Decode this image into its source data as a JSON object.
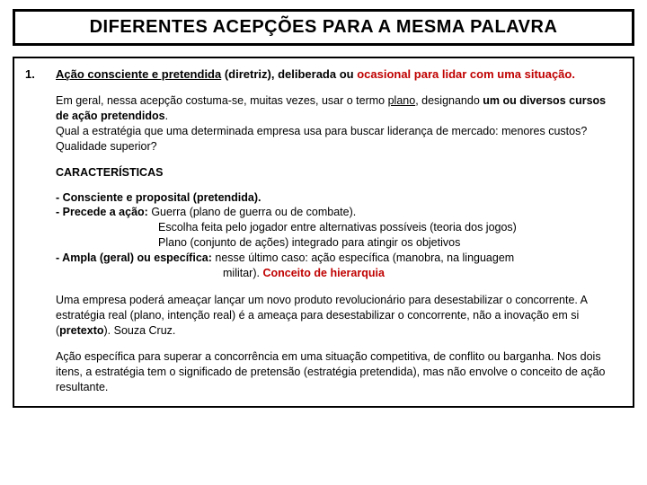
{
  "title": "DIFERENTES ACEPÇÕES PARA A MESMA PALAVRA",
  "item_number": "1.",
  "lead_pre": "Ação consciente e pretendida",
  "lead_post": " (diretriz), deliberada ou   ",
  "lead_red": "ocasional para lidar com uma situação.",
  "p1_a": "Em geral, nessa acepção costuma-se, muitas vezes, usar o termo ",
  "p1_plano": "plano",
  "p1_b": ", designando ",
  "p1_bold": "um ou diversos cursos de ação pretendidos",
  "p1_c": ".",
  "p2": "Qual a estratégia que uma determinada empresa usa para buscar liderança de mercado: menores custos? Qualidade superior?",
  "sect": "CARACTERÍSTICAS",
  "c1": "- Consciente e proposital (pretendida).",
  "c2_b": "- Precede a ação:",
  "c2_t": " Guerra (plano de guerra ou de combate).",
  "c2_l2": "Escolha feita pelo jogador entre alternativas possíveis (teoria dos jogos)",
  "c2_l3": "Plano (conjunto de ações) integrado para atingir os objetivos",
  "c3_b": "- Ampla (geral) ou específica:",
  "c3_t": "  nesse último caso: ação específica (manobra, na linguagem",
  "c3_l2a": "militar). ",
  "c3_red": "Conceito de hierarquia",
  "p3_a": "Uma empresa poderá ameaçar lançar um novo produto revolucionário para desestabilizar o concorrente. A estratégia real (plano, intenção real) é a ameaça para desestabilizar o concorrente, não a inovação em si (",
  "p3_b": "pretexto",
  "p3_c": "). Souza Cruz.",
  "p4": "Ação específica para superar a concorrência em uma situação competitiva, de conflito ou barganha. Nos dois itens, a estratégia tem o significado de pretensão (estratégia pretendida), mas não envolve o conceito de ação resultante."
}
